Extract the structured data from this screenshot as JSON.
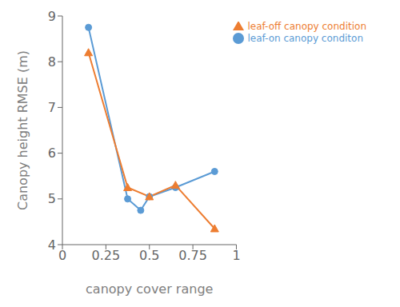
{
  "chart_data": {
    "type": "line",
    "xlabel": "canopy cover range",
    "ylabel": "Canopy height  RMSE (m)",
    "xlim": [
      0,
      1
    ],
    "ylim": [
      4,
      9
    ],
    "xticks": [
      0,
      0.25,
      0.5,
      0.75,
      1
    ],
    "yticks": [
      4,
      5,
      6,
      7,
      8,
      9
    ],
    "grid": false,
    "legend": "upper right",
    "series": [
      {
        "name": "leaf-on canopy conditon",
        "color": "#5B9BD5",
        "marker": "circle",
        "x": [
          0.15,
          0.375,
          0.45,
          0.5,
          0.65,
          0.875
        ],
        "values": [
          8.75,
          5.0,
          4.75,
          5.05,
          5.25,
          5.6
        ]
      },
      {
        "name": "leaf-off canopy condition",
        "color": "#ED7D31",
        "marker": "triangle",
        "x": [
          0.15,
          0.375,
          0.5,
          0.65,
          0.875
        ],
        "values": [
          8.2,
          5.25,
          5.05,
          5.3,
          4.35
        ]
      }
    ]
  }
}
